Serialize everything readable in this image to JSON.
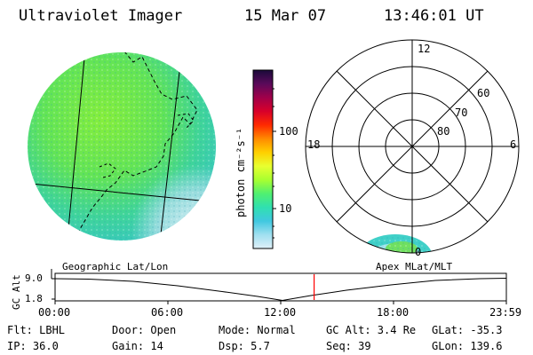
{
  "header": {
    "title": "Ultraviolet Imager",
    "date": "15 Mar 07",
    "time": "13:46:01 UT"
  },
  "geo_panel": {
    "label": "Geographic Lat/Lon"
  },
  "colorbar": {
    "label": "photon cm⁻²s⁻¹",
    "ticks": [
      "100",
      "10"
    ],
    "colors": [
      "#1a0a3a",
      "#5a0a5a",
      "#a0004a",
      "#d8002a",
      "#ff2a00",
      "#ff8a00",
      "#ffd000",
      "#e8ff30",
      "#a8ff30",
      "#50f070",
      "#30e0b0",
      "#40c8e0",
      "#a0e0f0",
      "#e0f0f8"
    ]
  },
  "polar_panel": {
    "label": "Apex MLat/MLT",
    "mlt_labels": {
      "top": "12",
      "left": "18",
      "right": "6",
      "bottom": "0"
    },
    "lat_labels": [
      "60",
      "70",
      "80"
    ]
  },
  "timeline": {
    "y_axis_label": "GC Alt",
    "y_ticks": [
      "9.0",
      "1.8"
    ],
    "x_ticks": [
      "00:00",
      "06:00",
      "12:00",
      "18:00",
      "23:59"
    ],
    "current_time_fraction": 0.574,
    "marker_color": "#ff0000"
  },
  "status": {
    "flt": "Flt: LBHL",
    "ip": "IP: 36.0",
    "door": "Door: Open",
    "gain": "Gain: 14",
    "mode": "Mode: Normal",
    "dsp": "Dsp:    5.7",
    "gcalt": "GC Alt: 3.4 Re",
    "seq": "Seq: 39",
    "glat": "GLat: -35.3",
    "glon": "GLon: 139.6"
  }
}
